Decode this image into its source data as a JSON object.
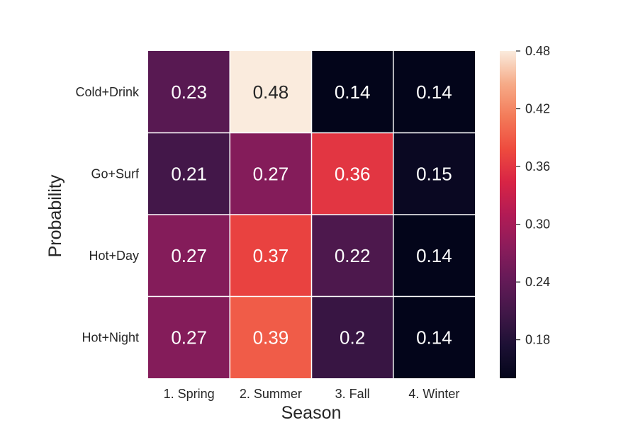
{
  "chart_data": {
    "type": "heatmap",
    "title": "",
    "xlabel": "Season",
    "ylabel": "Probability",
    "x_categories": [
      "1. Spring",
      "2. Summer",
      "3. Fall",
      "4. Winter"
    ],
    "y_categories": [
      "Cold+Drink",
      "Go+Surf",
      "Hot+Day",
      "Hot+Night"
    ],
    "values": [
      [
        0.23,
        0.48,
        0.14,
        0.14
      ],
      [
        0.21,
        0.27,
        0.36,
        0.15
      ],
      [
        0.27,
        0.37,
        0.22,
        0.14
      ],
      [
        0.27,
        0.39,
        0.2,
        0.14
      ]
    ],
    "cell_labels": [
      [
        "0.23",
        "0.48",
        "0.14",
        "0.14"
      ],
      [
        "0.21",
        "0.27",
        "0.36",
        "0.15"
      ],
      [
        "0.27",
        "0.37",
        "0.22",
        "0.14"
      ],
      [
        "0.27",
        "0.39",
        "0.2",
        "0.14"
      ]
    ],
    "colormap": "rocket",
    "vmin": 0.14,
    "vmax": 0.48,
    "colorbar_ticks": [
      0.18,
      0.24,
      0.3,
      0.36,
      0.42,
      0.48
    ],
    "colorbar_tick_labels": [
      "0.18",
      "0.24",
      "0.30",
      "0.36",
      "0.42",
      "0.48"
    ],
    "grid_line_color": "#ffffff",
    "dark_text_color": "#262626",
    "light_text_color": "#ffffff"
  }
}
